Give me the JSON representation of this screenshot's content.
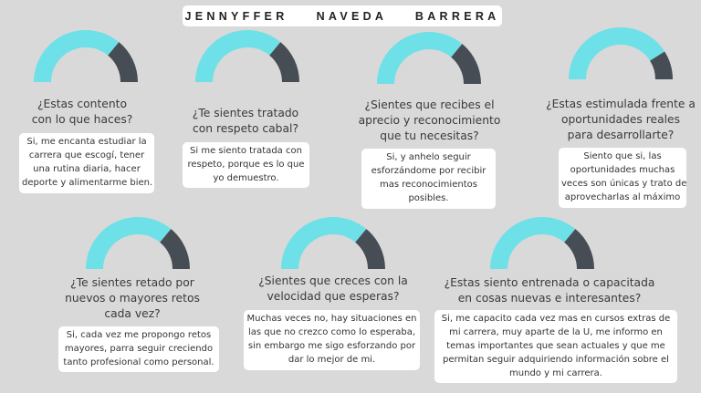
{
  "title": "JENNYFFER    NAVEDA    BARRERA",
  "colors": {
    "filled": "#6ee0e8",
    "remaining": "#474d54"
  },
  "items": [
    {
      "question": "¿Estas contento\ncon lo que haces?",
      "answer": "Si, me encanta estudiar la\ncarrera que escogí, tener\nuna rutina diaria, hacer\ndeporte y alimentarme bien.",
      "level": 0.72
    },
    {
      "question": "¿Te sientes tratado\ncon respeto cabal?",
      "answer": "Si me siento tratada con\nrespeto, porque es lo que\nyo demuestro.",
      "level": 0.72
    },
    {
      "question": "¿Sientes que recibes el\naprecio y reconocimiento\nque tu necesitas?",
      "answer": "Si, y anhelo seguir\nesforzándome por recibir\nmas reconocimientos\nposibles.",
      "level": 0.72
    },
    {
      "question": "¿Estas estimulada frente a\noportunidades reales\npara desarrollarte?",
      "answer": "Siento que si, las\noportunidades muchas\nveces son únicas y trato de\naprovecharlas al máximo",
      "level": 0.82
    },
    {
      "question": "¿Te sientes retado por\nnuevos o mayores retos\ncada vez?",
      "answer": "Si, cada vez me propongo retos\nmayores, parra seguir creciendo\ntanto profesional como personal.",
      "level": 0.72
    },
    {
      "question": "¿Sientes que creces con la\nvelocidad que esperas?",
      "answer": "Muchas veces no, hay situaciones en\nlas que no crezco como lo esperaba,\nsin embargo me sigo esforzando por\ndar lo mejor de mi.",
      "level": 0.72
    },
    {
      "question": "¿Estas siento entrenada o capacitada\nen cosas nuevas e interesantes?",
      "answer": "Si, me capacito cada vez mas en cursos extras de\nmi carrera, muy aparte de la U, me informo en\ntemas importantes que sean actuales y que me\npermitan seguir adquiriendo información sobre el\nmundo y mi carrera.",
      "level": 0.72
    }
  ]
}
